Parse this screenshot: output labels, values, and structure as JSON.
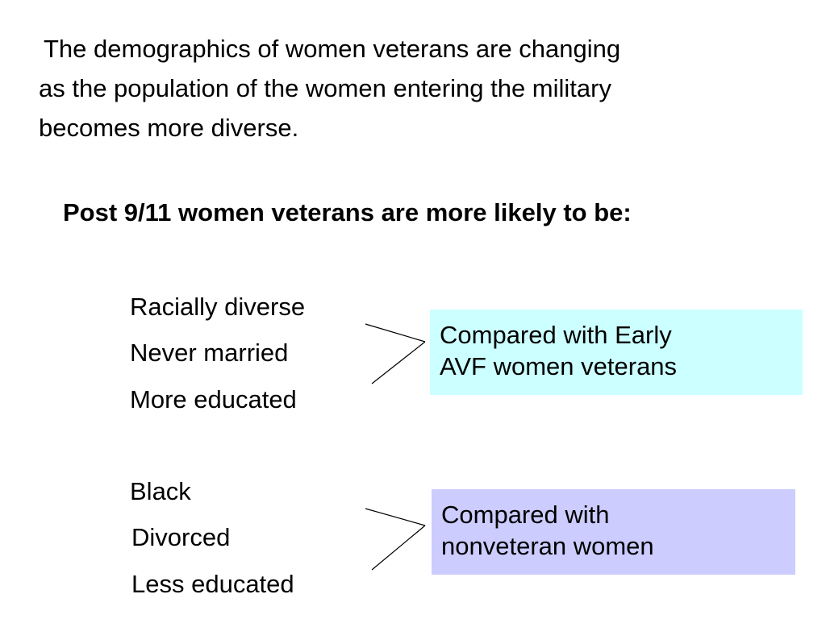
{
  "intro": {
    "lines": [
      "The demographics of women veterans are changing",
      "as the population of the women entering the military",
      "becomes more diverse."
    ]
  },
  "heading": "Post 9/11 women veterans are more likely to be:",
  "group_early_avf": {
    "items": [
      "Racially diverse",
      "Never married",
      "More educated"
    ],
    "comparison": [
      "Compared with Early",
      "AVF women veterans"
    ],
    "box_color": "#ccffff"
  },
  "group_nonveteran": {
    "items": [
      "Black",
      "Divorced",
      "Less educated"
    ],
    "comparison": [
      "Compared with",
      "nonveteran women"
    ],
    "box_color": "#ccccff"
  }
}
